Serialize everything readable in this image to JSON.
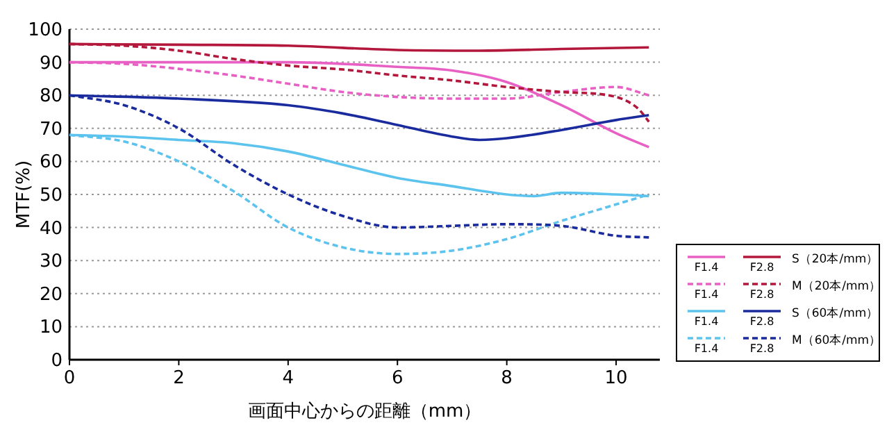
{
  "chart_data": {
    "type": "line",
    "xlabel": "画面中心からの距離（mm）",
    "ylabel": "MTF(%)",
    "xlim": [
      0,
      10.8
    ],
    "ylim": [
      0,
      100
    ],
    "xticks": [
      0,
      2,
      4,
      6,
      8,
      10
    ],
    "yticks": [
      0,
      10,
      20,
      30,
      40,
      50,
      60,
      70,
      80,
      90,
      100
    ],
    "grid": "y",
    "legend": "right",
    "annotations": [
      "S（20本/mm）",
      "M（20本/mm）",
      "S（60本/mm）",
      "M（60本/mm）"
    ],
    "series": [
      {
        "name": "F1.4",
        "color": "#e860c4",
        "line_style": "solid",
        "x": [
          0,
          2,
          4,
          6,
          7,
          8,
          9,
          10,
          10.6
        ],
        "values": [
          90,
          90,
          90,
          88.6,
          87.5,
          84,
          77,
          68.5,
          64.3
        ]
      },
      {
        "name": "F2.8",
        "color": "#b3173c",
        "line_style": "solid",
        "x": [
          0,
          2,
          4,
          6,
          7.5,
          9,
          10.6
        ],
        "values": [
          95.5,
          95.3,
          95,
          93.7,
          93.5,
          94,
          94.5
        ]
      },
      {
        "name": "F1.4",
        "color": "#e860c4",
        "line_style": "dashed",
        "x": [
          0,
          1,
          2,
          3,
          4,
          5,
          6,
          7,
          8,
          9,
          10,
          10.6
        ],
        "values": [
          90,
          89.5,
          88,
          86,
          83.5,
          81,
          79.5,
          79,
          79,
          81,
          82.5,
          80
        ]
      },
      {
        "name": "F2.8",
        "color": "#b3173c",
        "line_style": "dashed",
        "x": [
          0,
          1,
          2,
          3,
          4,
          5,
          6,
          7,
          8,
          9,
          10,
          10.4,
          10.6
        ],
        "values": [
          95.5,
          95,
          93.5,
          91,
          89,
          87.8,
          86,
          84.5,
          82.5,
          81,
          79.5,
          76,
          72
        ]
      },
      {
        "name": "F1.4",
        "color": "#5cc3ee",
        "line_style": "solid",
        "x": [
          0,
          1,
          2,
          3,
          4,
          5,
          6,
          7,
          8,
          8.5,
          9,
          10,
          10.6
        ],
        "values": [
          68,
          67.5,
          66.5,
          65.5,
          63,
          59,
          55,
          52.5,
          50,
          49.5,
          50.5,
          50,
          49.5
        ]
      },
      {
        "name": "F2.8",
        "color": "#1a2b9e",
        "line_style": "solid",
        "x": [
          0,
          2,
          4,
          5,
          6,
          7,
          7.5,
          8,
          9,
          10,
          10.6
        ],
        "values": [
          80,
          79,
          77,
          74.5,
          71,
          67.5,
          66.5,
          67,
          69.5,
          72.5,
          74
        ]
      },
      {
        "name": "F1.4",
        "color": "#5cc3ee",
        "line_style": "dashed",
        "x": [
          0,
          1,
          2,
          3,
          4,
          5,
          6,
          7,
          8,
          9,
          10,
          10.6
        ],
        "values": [
          68,
          66,
          60,
          51,
          40,
          34,
          32,
          33,
          36.5,
          42,
          47,
          50
        ]
      },
      {
        "name": "F2.8",
        "color": "#1a2b9e",
        "line_style": "dashed",
        "x": [
          0,
          1,
          2,
          3,
          4,
          5,
          6,
          7,
          8,
          9,
          10,
          10.6
        ],
        "values": [
          80,
          77,
          70,
          59,
          50,
          43.5,
          40,
          40.5,
          41,
          40.5,
          37.5,
          37
        ]
      }
    ]
  }
}
